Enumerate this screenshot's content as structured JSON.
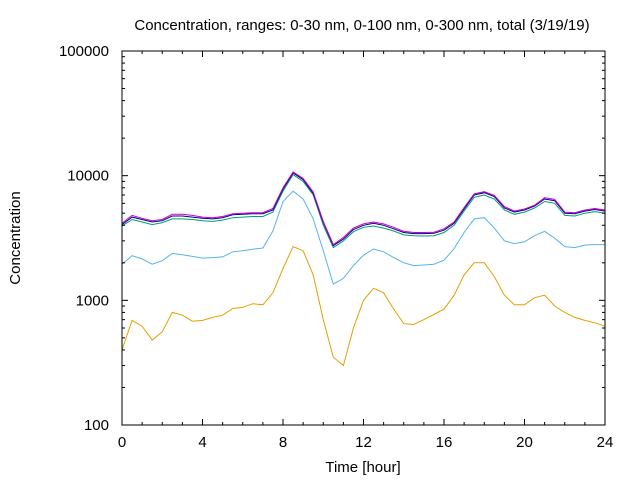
{
  "chart_data": {
    "type": "line",
    "title": "Concentration, ranges: 0-30 nm, 0-100 nm, 0-300 nm, total (3/19/19)",
    "xlabel": "Time [hour]",
    "ylabel": "Concentration",
    "xlim": [
      0,
      24
    ],
    "ylim": [
      100,
      100000
    ],
    "yscale": "log",
    "grid": false,
    "legend": "none",
    "x_ticks": [
      0,
      4,
      8,
      12,
      16,
      20,
      24
    ],
    "x_tick_labels": [
      "0",
      "4",
      "8",
      "12",
      "16",
      "20",
      "24"
    ],
    "y_ticks": [
      100,
      1000,
      10000,
      100000
    ],
    "y_tick_labels": [
      "100",
      "1000",
      "10000",
      "100000"
    ],
    "x": [
      0,
      0.5,
      1,
      1.5,
      2,
      2.5,
      3,
      3.5,
      4,
      4.5,
      5,
      5.5,
      6,
      6.5,
      7,
      7.5,
      8,
      8.5,
      9,
      9.5,
      10,
      10.5,
      11,
      11.5,
      12,
      12.5,
      13,
      13.5,
      14,
      14.5,
      15,
      15.5,
      16,
      16.5,
      17,
      17.5,
      18,
      18.5,
      19,
      19.5,
      20,
      20.5,
      21,
      21.5,
      22,
      22.5,
      23,
      23.5,
      24
    ],
    "series": [
      {
        "color": "#e69f00",
        "values": [
          400,
          690,
          620,
          480,
          560,
          800,
          760,
          680,
          690,
          730,
          760,
          860,
          880,
          940,
          920,
          1150,
          1800,
          2700,
          2500,
          1600,
          700,
          350,
          300,
          600,
          1000,
          1250,
          1150,
          850,
          650,
          640,
          700,
          770,
          850,
          1100,
          1600,
          2000,
          2000,
          1550,
          1100,
          920,
          920,
          1050,
          1100,
          900,
          800,
          730,
          690,
          660,
          620
        ]
      },
      {
        "color": "#56b4e9",
        "values": [
          1950,
          2280,
          2150,
          1950,
          2080,
          2380,
          2320,
          2250,
          2180,
          2200,
          2230,
          2450,
          2500,
          2570,
          2630,
          3600,
          6200,
          7500,
          6500,
          4500,
          2500,
          1350,
          1500,
          1900,
          2300,
          2580,
          2450,
          2200,
          2000,
          1900,
          1920,
          1950,
          2100,
          2600,
          3500,
          4500,
          4600,
          3800,
          3000,
          2850,
          2950,
          3300,
          3580,
          3150,
          2700,
          2650,
          2780,
          2800,
          2800
        ]
      },
      {
        "color": "#009e73",
        "values": [
          3950,
          4450,
          4250,
          4050,
          4200,
          4500,
          4500,
          4450,
          4350,
          4300,
          4400,
          4600,
          4650,
          4700,
          4700,
          5100,
          7500,
          10200,
          9000,
          7000,
          4000,
          2650,
          3000,
          3550,
          3850,
          3950,
          3800,
          3600,
          3350,
          3300,
          3280,
          3300,
          3500,
          4000,
          5200,
          6700,
          7000,
          6500,
          5300,
          4900,
          5100,
          5500,
          6200,
          6000,
          4800,
          4750,
          5000,
          5150,
          5000
        ]
      },
      {
        "color": "#00008b",
        "values": [
          4050,
          4650,
          4450,
          4250,
          4350,
          4750,
          4750,
          4650,
          4550,
          4500,
          4600,
          4850,
          4900,
          4950,
          4950,
          5300,
          7800,
          10500,
          9300,
          7200,
          4200,
          2750,
          3100,
          3700,
          4000,
          4150,
          4000,
          3750,
          3500,
          3430,
          3430,
          3450,
          3650,
          4150,
          5400,
          7000,
          7300,
          6800,
          5500,
          5100,
          5300,
          5700,
          6500,
          6300,
          5000,
          4950,
          5200,
          5350,
          5200
        ]
      },
      {
        "color": "#cc00cc",
        "values": [
          4150,
          4800,
          4550,
          4350,
          4450,
          4900,
          4900,
          4800,
          4650,
          4600,
          4700,
          4950,
          5000,
          5050,
          5050,
          5450,
          8000,
          10700,
          9500,
          7400,
          4300,
          2800,
          3200,
          3800,
          4100,
          4250,
          4100,
          3850,
          3580,
          3500,
          3500,
          3520,
          3750,
          4250,
          5550,
          7150,
          7450,
          6950,
          5650,
          5200,
          5400,
          5800,
          6650,
          6450,
          5100,
          5050,
          5300,
          5450,
          5300
        ]
      }
    ]
  }
}
